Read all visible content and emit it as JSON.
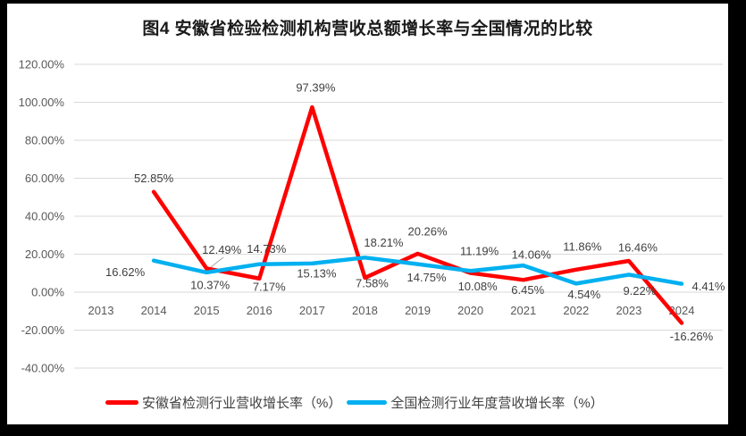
{
  "chart_data": {
    "type": "line",
    "title": "图4 安徽省检验检测机构营收总额增长率与全国情况的比较",
    "categories": [
      "2013",
      "2014",
      "2015",
      "2016",
      "2017",
      "2018",
      "2019",
      "2020",
      "2021",
      "2022",
      "2023",
      "2024"
    ],
    "series": [
      {
        "name": "安徽省检测行业营收增长率（%）",
        "color": "#FF0000",
        "values": [
          null,
          52.85,
          12.49,
          7.17,
          97.39,
          7.58,
          20.26,
          10.08,
          6.45,
          11.86,
          16.46,
          -16.26
        ],
        "labels": [
          "",
          "52.85%",
          "12.49%",
          "7.17%",
          "97.39%",
          "7.58%",
          "20.26%",
          "10.08%",
          "6.45%",
          "11.86%",
          "16.46%",
          "-16.26%"
        ]
      },
      {
        "name": "全国检测行业年度营收增长率（%）",
        "color": "#00B0F0",
        "values": [
          null,
          16.62,
          10.37,
          14.73,
          15.13,
          18.21,
          14.75,
          11.19,
          14.06,
          4.54,
          9.22,
          4.41
        ],
        "labels": [
          "",
          "16.62%",
          "10.37%",
          "14.73%",
          "15.13%",
          "18.21%",
          "14.75%",
          "11.19%",
          "14.06%",
          "4.54%",
          "9.22%",
          "4.41%"
        ]
      }
    ],
    "y_axis": {
      "range": [
        -40,
        120
      ],
      "ticks": [
        {
          "value": 120,
          "label": "120.00%"
        },
        {
          "value": 100,
          "label": "100.00%"
        },
        {
          "value": 80,
          "label": "80.00%"
        },
        {
          "value": 60,
          "label": "60.00%"
        },
        {
          "value": 40,
          "label": "40.00%"
        },
        {
          "value": 20,
          "label": "20.00%"
        },
        {
          "value": 0,
          "label": "0.00%"
        },
        {
          "value": -20,
          "label": "-20.00%"
        },
        {
          "value": -40,
          "label": "-40.00%"
        }
      ]
    },
    "grid": true,
    "legend_position": "bottom",
    "colors": {
      "grid": "#D9D9D9",
      "axis_text": "#595959",
      "data_label_text": "#404040",
      "leader_line": "#A6A6A6",
      "frame_border": "#000000",
      "background": "#FFFFFF",
      "title_text": "#1A1A1A"
    }
  }
}
